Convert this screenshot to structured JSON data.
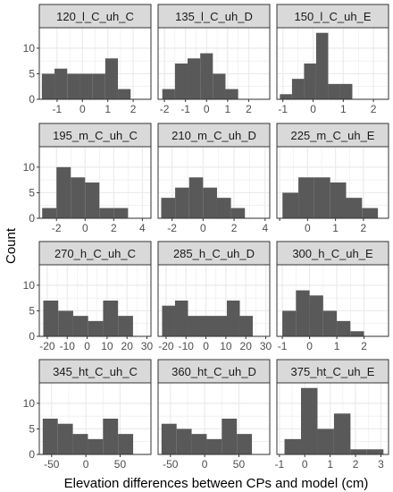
{
  "chart_data": {
    "type": "bar",
    "ylabel": "Count",
    "xlabel": "Elevation differences between CPs and model (cm)",
    "ylim": [
      0,
      14
    ],
    "y_ticks": [
      0,
      5,
      10
    ],
    "grid": true,
    "legend": "none",
    "colors": {
      "bar": "#595959",
      "panel_bg": "#ffffff",
      "grid": "#ebebeb",
      "strip": "#d9d9d9",
      "border": "#333333"
    },
    "panels": [
      {
        "title": "120_l_C_uh_C",
        "xlim": [
          -1.7,
          2.7
        ],
        "x_ticks": [
          -1,
          0,
          1,
          2
        ],
        "x_tick_labels": [
          "-1",
          "0",
          "1",
          "2"
        ],
        "bins_start": -1.6,
        "bin_width": 0.5,
        "counts": [
          5,
          6,
          5,
          5,
          5,
          8,
          2
        ]
      },
      {
        "title": "135_l_C_uh_D",
        "xlim": [
          -2.3,
          3.0
        ],
        "x_ticks": [
          -2,
          -1,
          0,
          1,
          2
        ],
        "x_tick_labels": [
          "-2",
          "-1",
          "0",
          "1",
          "2"
        ],
        "bins_start": -2.1,
        "bin_width": 0.6,
        "counts": [
          2,
          7,
          8,
          9,
          5,
          2
        ]
      },
      {
        "title": "150_l_C_uh_E",
        "xlim": [
          -1.2,
          2.5
        ],
        "x_ticks": [
          -1,
          0,
          1,
          2
        ],
        "x_tick_labels": [
          "-1",
          "0",
          "1",
          "2"
        ],
        "bins_start": -1.1,
        "bin_width": 0.4,
        "counts": [
          1,
          4,
          7,
          13,
          3,
          3
        ]
      },
      {
        "title": "195_m_C_uh_C",
        "xlim": [
          -3.2,
          4.6
        ],
        "x_ticks": [
          -2,
          0,
          2,
          4
        ],
        "x_tick_labels": [
          "-2",
          "0",
          "2",
          "4"
        ],
        "bins_start": -3.0,
        "bin_width": 1.0,
        "counts": [
          2,
          10,
          8,
          7,
          2,
          2
        ]
      },
      {
        "title": "210_m_C_uh_D",
        "xlim": [
          -2.9,
          4.3
        ],
        "x_ticks": [
          -2,
          0,
          2,
          4
        ],
        "x_tick_labels": [
          "-2",
          "0",
          "2",
          "4"
        ],
        "bins_start": -2.7,
        "bin_width": 0.9,
        "counts": [
          4,
          6,
          8,
          6,
          4,
          2
        ]
      },
      {
        "title": "225_m_C_uh_E",
        "xlim": [
          -1.1,
          2.9
        ],
        "x_ticks": [
          -1,
          0,
          1,
          2
        ],
        "x_tick_labels": [
          "",
          "0",
          "1",
          "2"
        ],
        "bins_start": -0.9,
        "bin_width": 0.57,
        "counts": [
          5,
          8,
          8,
          7,
          4,
          2
        ]
      },
      {
        "title": "270_h_C_uh_C",
        "xlim": [
          -24,
          32
        ],
        "x_ticks": [
          -20,
          -10,
          0,
          10,
          20,
          30
        ],
        "x_tick_labels": [
          "-20",
          "-10",
          "0",
          "10",
          "20",
          "30"
        ],
        "bins_start": -22,
        "bin_width": 7.5,
        "counts": [
          7,
          5,
          4,
          3,
          7,
          4
        ]
      },
      {
        "title": "285_h_C_uh_D",
        "xlim": [
          -24,
          32
        ],
        "x_ticks": [
          -20,
          -10,
          0,
          10,
          20,
          30
        ],
        "x_tick_labels": [
          "-20",
          "-10",
          "0",
          "10",
          "20",
          "30"
        ],
        "bins_start": -22,
        "bin_width": 6.5,
        "counts": [
          6,
          7,
          4,
          4,
          4,
          7,
          4
        ]
      },
      {
        "title": "300_h_C_uh_E",
        "xlim": [
          -1.2,
          2.9
        ],
        "x_ticks": [
          -1,
          0,
          1,
          2
        ],
        "x_tick_labels": [
          "-1",
          "0",
          "1",
          "2"
        ],
        "bins_start": -1.0,
        "bin_width": 0.5,
        "counts": [
          5,
          9,
          8,
          5,
          3,
          1
        ]
      },
      {
        "title": "345_ht_C_uh_C",
        "xlim": [
          -68,
          95
        ],
        "x_ticks": [
          -50,
          0,
          50
        ],
        "x_tick_labels": [
          "-50",
          "0",
          "50"
        ],
        "bins_start": -63,
        "bin_width": 22,
        "counts": [
          7,
          6,
          4,
          3,
          7,
          4
        ]
      },
      {
        "title": "360_ht_C_uh_D",
        "xlim": [
          -68,
          95
        ],
        "x_ticks": [
          -50,
          0,
          50
        ],
        "x_tick_labels": [
          "-50",
          "0",
          "50"
        ],
        "bins_start": -63,
        "bin_width": 22,
        "counts": [
          6,
          5,
          4,
          3,
          7,
          4
        ]
      },
      {
        "title": "375_ht_C_uh_E",
        "xlim": [
          -1.1,
          3.3
        ],
        "x_ticks": [
          -1,
          0,
          1,
          2,
          3
        ],
        "x_tick_labels": [
          "-1",
          "0",
          "1",
          "2",
          "3"
        ],
        "bins_start": -0.8,
        "bin_width": 0.65,
        "counts": [
          3,
          13,
          5,
          8,
          1,
          1
        ]
      }
    ]
  }
}
